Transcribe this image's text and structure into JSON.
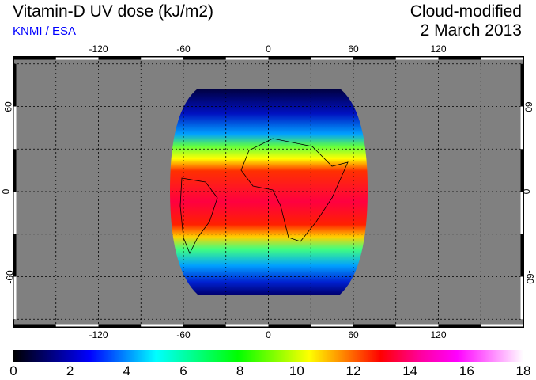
{
  "header": {
    "title": "Vitamin-D UV dose (kJ/m2)",
    "credit": "KNMI / ESA",
    "product": "Cloud-modified",
    "date": "2 March 2013"
  },
  "map": {
    "lon_ticks": [
      "-120",
      "-60",
      "0",
      "60",
      "120"
    ],
    "lat_ticks": [
      "60",
      "0",
      "-60"
    ],
    "background": "#808080"
  },
  "colorbar": {
    "ticks": [
      "0",
      "2",
      "4",
      "6",
      "8",
      "10",
      "12",
      "14",
      "16",
      "18"
    ],
    "min": 0,
    "max": 18
  }
}
